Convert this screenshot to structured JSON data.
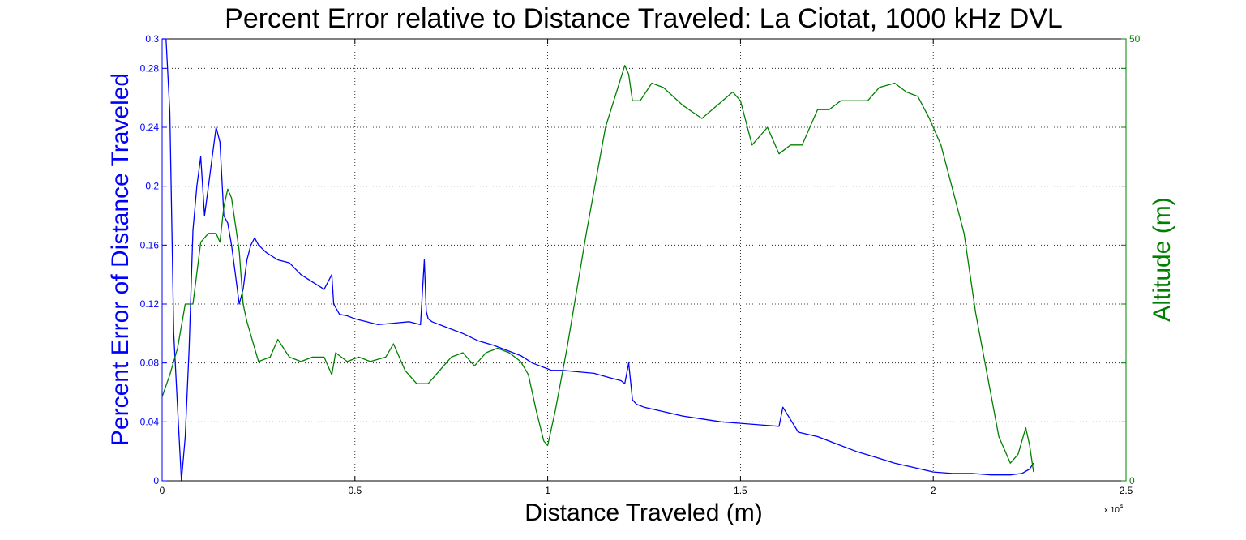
{
  "chart_data": {
    "type": "line",
    "title": "Percent Error relative to Distance Traveled:   La Ciotat, 1000 kHz DVL",
    "xlabel": "Distance Traveled (m)",
    "ylabel_left": "Percent Error of Distance Traveled",
    "ylabel_right": "Altitude (m)",
    "x_exponent_base": "x 10",
    "x_exponent_power": "4",
    "xlim": [
      0,
      25000
    ],
    "ylim_left": [
      0,
      0.3
    ],
    "ylim_right": [
      0,
      50
    ],
    "grid": true,
    "x_ticks": [
      0,
      5000,
      10000,
      15000,
      20000,
      25000
    ],
    "x_tick_labels": [
      "0",
      "0.5",
      "1",
      "1.5",
      "2",
      "2.5"
    ],
    "yl_ticks": [
      0,
      0.04,
      0.08,
      0.12,
      0.16,
      0.2,
      0.24,
      0.28,
      0.3
    ],
    "yl_tick_labels": [
      "0",
      "0.04",
      "0.08",
      "0.12",
      "0.16",
      "0.2",
      "0.24",
      "0.28",
      "0.3"
    ],
    "yr_ticks": [
      0,
      50
    ],
    "yr_tick_labels": [
      "0",
      "50"
    ],
    "colors": {
      "left": "#0000ff",
      "right": "#008000"
    },
    "series": [
      {
        "axis": "left",
        "x": [
          0,
          100,
          200,
          300,
          400,
          500,
          600,
          700,
          800,
          900,
          1000,
          1100,
          1200,
          1300,
          1400,
          1500,
          1600,
          1700,
          1800,
          1900,
          2000,
          2100,
          2200,
          2300,
          2400,
          2500,
          2700,
          3000,
          3300,
          3600,
          3900,
          4200,
          4400,
          4450,
          4600,
          4800,
          5000,
          5300,
          5600,
          6000,
          6400,
          6700,
          6800,
          6850,
          6900,
          7000,
          7400,
          7800,
          8200,
          8600,
          9000,
          9300,
          9600,
          9800,
          9900,
          10000,
          10100,
          10400,
          10800,
          11200,
          11600,
          11900,
          12000,
          12100,
          12200,
          12300,
          12500,
          13000,
          13500,
          14000,
          14500,
          15000,
          15500,
          16000,
          16100,
          16500,
          17000,
          17500,
          18000,
          18500,
          19000,
          19500,
          20000,
          20500,
          21000,
          21500,
          22000,
          22300,
          22500,
          22600
        ],
        "y": [
          0.3,
          0.3,
          0.25,
          0.1,
          0.05,
          0.0,
          0.03,
          0.09,
          0.17,
          0.2,
          0.22,
          0.18,
          0.2,
          0.22,
          0.24,
          0.23,
          0.18,
          0.175,
          0.16,
          0.14,
          0.12,
          0.13,
          0.15,
          0.16,
          0.165,
          0.16,
          0.155,
          0.15,
          0.148,
          0.14,
          0.135,
          0.13,
          0.14,
          0.12,
          0.113,
          0.112,
          0.11,
          0.108,
          0.106,
          0.107,
          0.108,
          0.106,
          0.15,
          0.115,
          0.11,
          0.108,
          0.104,
          0.1,
          0.095,
          0.092,
          0.088,
          0.085,
          0.08,
          0.078,
          0.077,
          0.076,
          0.075,
          0.075,
          0.074,
          0.073,
          0.07,
          0.068,
          0.066,
          0.08,
          0.055,
          0.052,
          0.05,
          0.047,
          0.044,
          0.042,
          0.04,
          0.039,
          0.038,
          0.037,
          0.05,
          0.033,
          0.03,
          0.025,
          0.02,
          0.016,
          0.012,
          0.009,
          0.006,
          0.005,
          0.005,
          0.004,
          0.004,
          0.005,
          0.008,
          0.012
        ]
      },
      {
        "axis": "right",
        "x": [
          0,
          200,
          400,
          600,
          800,
          1000,
          1200,
          1400,
          1500,
          1600,
          1700,
          1800,
          2000,
          2100,
          2200,
          2400,
          2500,
          2800,
          3000,
          3300,
          3600,
          3900,
          4200,
          4400,
          4500,
          4800,
          5100,
          5400,
          5800,
          6000,
          6300,
          6600,
          6900,
          7200,
          7500,
          7800,
          8100,
          8400,
          8700,
          9000,
          9300,
          9500,
          9700,
          9900,
          10000,
          10200,
          10500,
          11000,
          11500,
          12000,
          12100,
          12200,
          12400,
          12700,
          13000,
          13500,
          14000,
          14400,
          14800,
          15000,
          15300,
          15500,
          15700,
          16000,
          16300,
          16600,
          17000,
          17300,
          17600,
          18000,
          18300,
          18600,
          19000,
          19300,
          19600,
          19900,
          20200,
          20500,
          20800,
          21100,
          21400,
          21700,
          22000,
          22200,
          22400,
          22500,
          22600
        ],
        "y": [
          9.5,
          12,
          15,
          20,
          20,
          27,
          28,
          28,
          27,
          31,
          33,
          32,
          26,
          20,
          18,
          15,
          13.5,
          14,
          16,
          14,
          13.5,
          14,
          14,
          12,
          14.5,
          13.5,
          14,
          13.5,
          14,
          15.5,
          12.5,
          11,
          11,
          12.5,
          14,
          14.5,
          13,
          14.5,
          15,
          14.5,
          13.5,
          12,
          8,
          4.5,
          4,
          8,
          15,
          28,
          40,
          47,
          46,
          43,
          43,
          45,
          44.5,
          42.5,
          41,
          42.5,
          44,
          43,
          38,
          39,
          40,
          37,
          38,
          38,
          42,
          42,
          43,
          43,
          43,
          44.5,
          45,
          44,
          43.5,
          41,
          38,
          33,
          28,
          19,
          12,
          5,
          2,
          3,
          6,
          4,
          1
        ]
      }
    ]
  }
}
